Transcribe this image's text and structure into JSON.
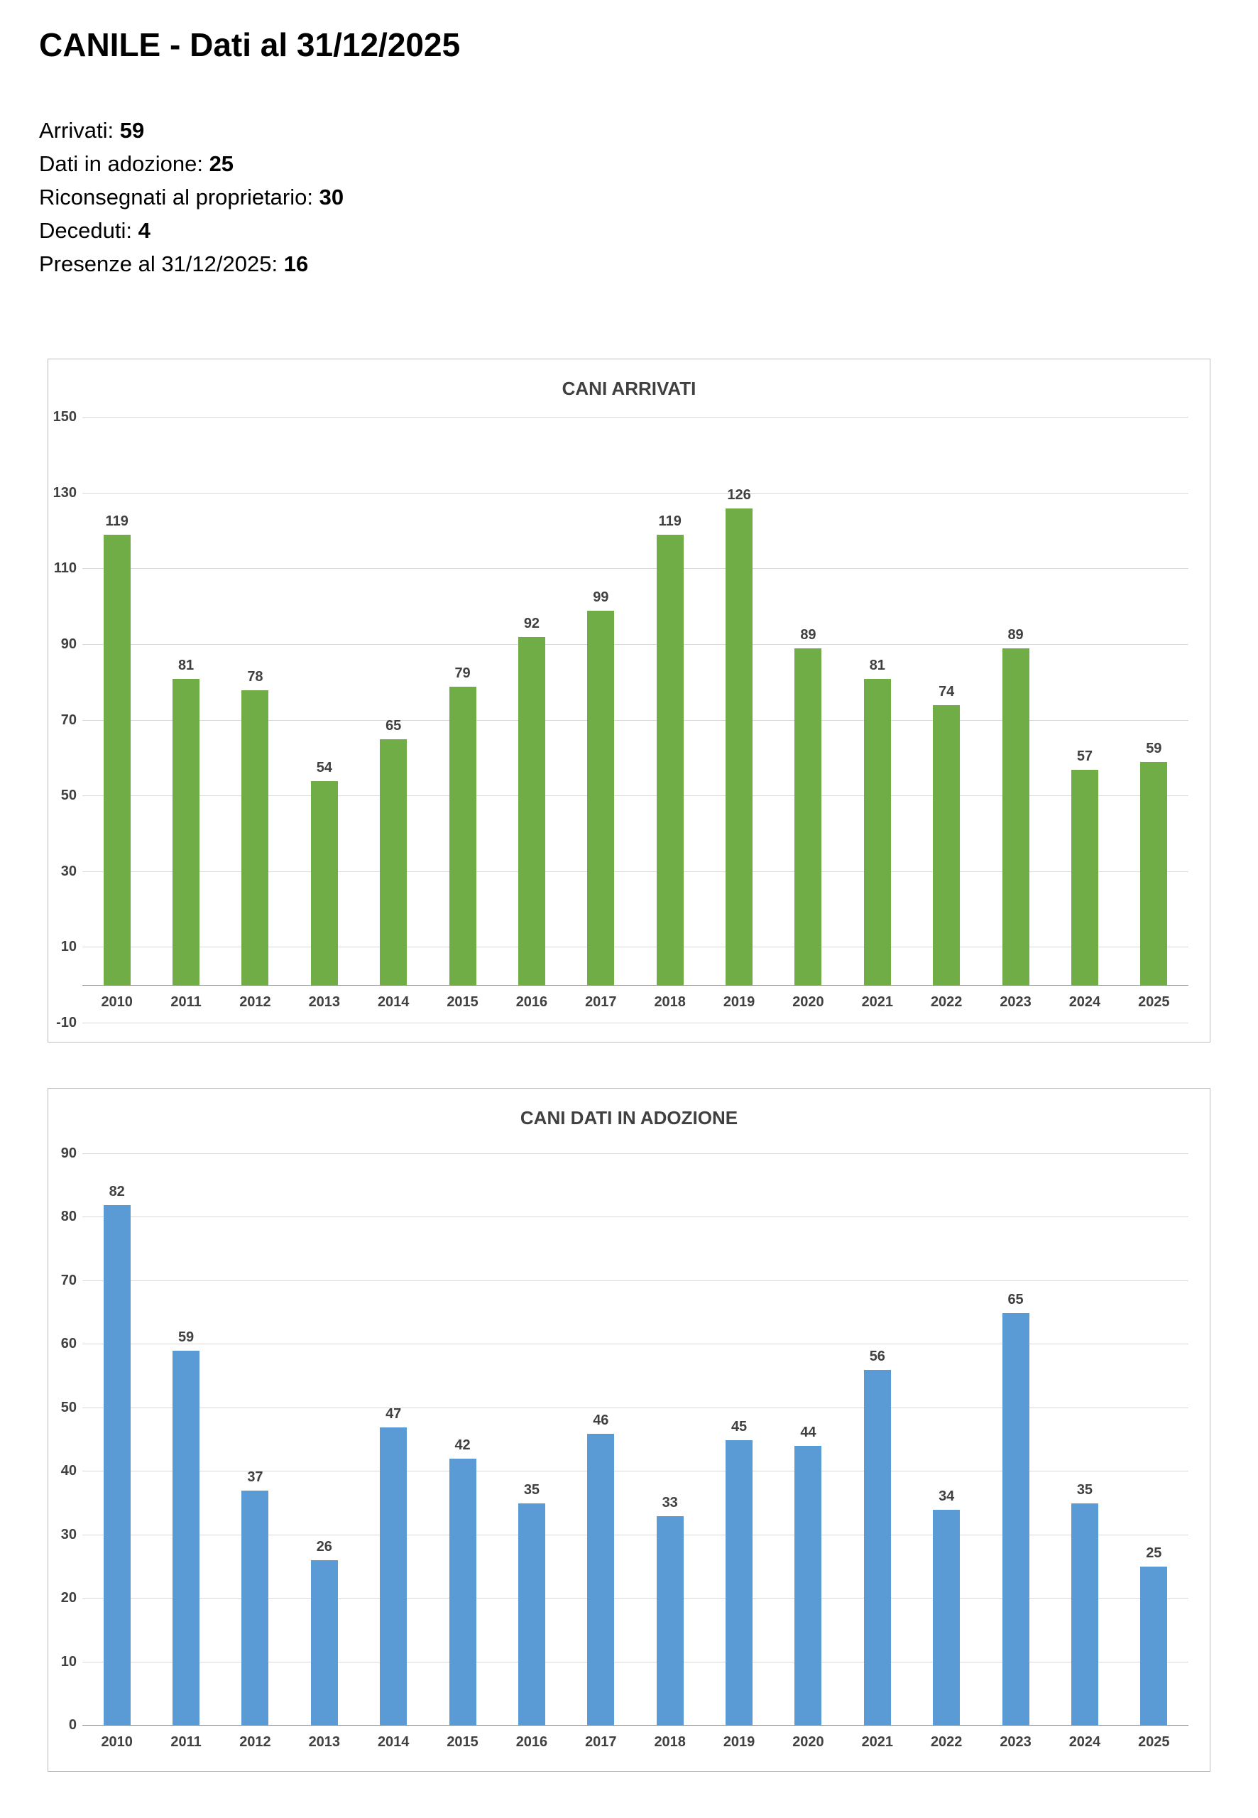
{
  "page": {
    "title": "CANILE - Dati al 31/12/2025",
    "stats": [
      {
        "label": "Arrivati:",
        "value": "59"
      },
      {
        "label": "Dati in adozione:",
        "value": "25"
      },
      {
        "label": "Riconsegnati al proprietario:",
        "value": "30"
      },
      {
        "label": "Deceduti:",
        "value": "4"
      },
      {
        "label": "Presenze al 31/12/2025:",
        "value": "16"
      }
    ]
  },
  "chart_data": [
    {
      "type": "bar",
      "title": "CANI ARRIVATI",
      "categories": [
        "2010",
        "2011",
        "2012",
        "2013",
        "2014",
        "2015",
        "2016",
        "2017",
        "2018",
        "2019",
        "2020",
        "2021",
        "2022",
        "2023",
        "2024",
        "2025"
      ],
      "values": [
        119,
        81,
        78,
        54,
        65,
        79,
        92,
        99,
        119,
        126,
        89,
        81,
        74,
        89,
        57,
        59
      ],
      "xlabel": "",
      "ylabel": "",
      "ylim": [
        -10,
        150
      ],
      "yticks": [
        150,
        130,
        110,
        90,
        70,
        50,
        30,
        10,
        -10
      ],
      "grid": true,
      "legend": "none",
      "bar_color": "#70AD47"
    },
    {
      "type": "bar",
      "title": "CANI DATI IN ADOZIONE",
      "categories": [
        "2010",
        "2011",
        "2012",
        "2013",
        "2014",
        "2015",
        "2016",
        "2017",
        "2018",
        "2019",
        "2020",
        "2021",
        "2022",
        "2023",
        "2024",
        "2025"
      ],
      "values": [
        82,
        59,
        37,
        26,
        47,
        42,
        35,
        46,
        33,
        45,
        44,
        56,
        34,
        65,
        35,
        25
      ],
      "xlabel": "",
      "ylabel": "",
      "ylim": [
        0,
        90
      ],
      "yticks": [
        90,
        80,
        70,
        60,
        50,
        40,
        30,
        20,
        10,
        0
      ],
      "grid": true,
      "legend": "none",
      "bar_color": "#5B9BD5"
    }
  ]
}
